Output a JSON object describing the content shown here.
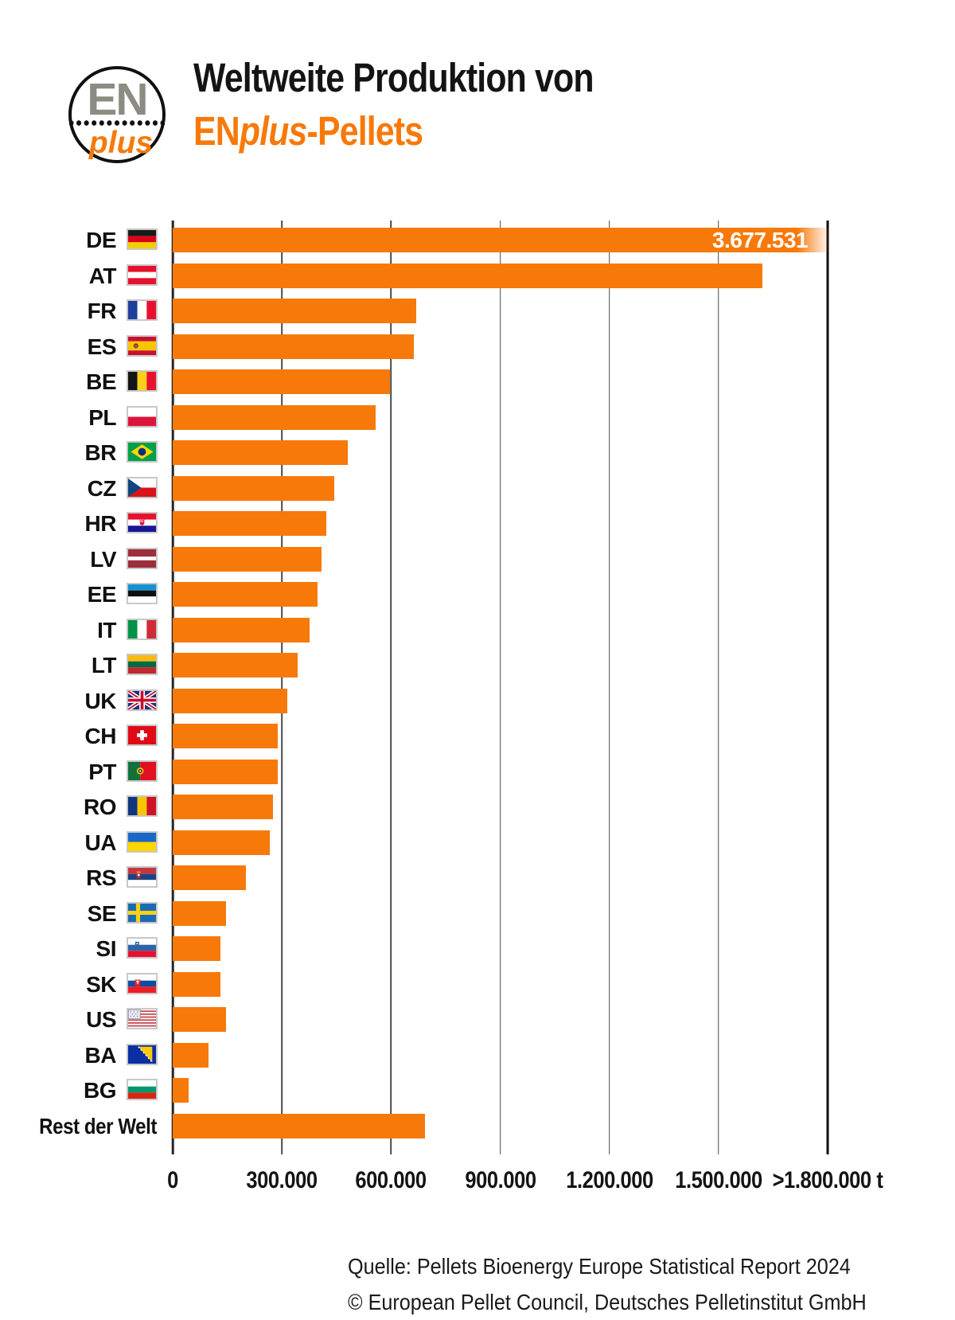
{
  "header": {
    "logo": {
      "text_top": "EN",
      "text_bottom": "plus"
    },
    "title": {
      "line1": "Weltweite Produktion von",
      "line2_en": "EN",
      "line2_plus": "plus",
      "line2_rest": "-Pellets"
    }
  },
  "chart_data": {
    "type": "bar",
    "orientation": "horizontal",
    "title": "Weltweite Produktion von ENplus-Pellets",
    "unit": "t",
    "axis_max": 1800000,
    "grid": true,
    "x_ticks": [
      {
        "label": "0",
        "value": 0
      },
      {
        "label": "300.000",
        "value": 300000
      },
      {
        "label": "600.000",
        "value": 600000
      },
      {
        "label": "900.000",
        "value": 900000
      },
      {
        "label": "1.200.000",
        "value": 1200000
      },
      {
        "label": "1.500.000",
        "value": 1500000
      },
      {
        "label": ">1.800.000 t",
        "value": 1800000
      }
    ],
    "categories": [
      "DE",
      "AT",
      "FR",
      "ES",
      "BE",
      "PL",
      "BR",
      "CZ",
      "HR",
      "LV",
      "EE",
      "IT",
      "LT",
      "UK",
      "CH",
      "PT",
      "RO",
      "UA",
      "RS",
      "SE",
      "SI",
      "SK",
      "US",
      "BA",
      "BG",
      "Rest der Welt"
    ],
    "values": [
      3677531,
      1620000,
      670000,
      662000,
      596000,
      558000,
      482000,
      445000,
      423000,
      410000,
      399000,
      377000,
      343000,
      315000,
      289000,
      288000,
      275000,
      267000,
      201000,
      146000,
      132000,
      132000,
      147000,
      99000,
      44000,
      693000
    ],
    "value_label": {
      "index": 0,
      "text": "3.677.531"
    },
    "overflow_index": 0,
    "colors": {
      "bar": "#F7790A",
      "grid": "#4A4A4A",
      "axis": "#1C1C1C",
      "value_label_text": "#FFFFFF"
    },
    "flags": {
      "DE": [
        [
          "rect",
          0,
          0,
          30,
          6.7,
          "#1A1A1A"
        ],
        [
          "rect",
          0,
          6.7,
          30,
          6.6,
          "#DD0016"
        ],
        [
          "rect",
          0,
          13.3,
          30,
          6.7,
          "#F2CE00"
        ]
      ],
      "AT": [
        [
          "rect",
          0,
          0,
          30,
          6.7,
          "#E8112D"
        ],
        [
          "rect",
          0,
          6.7,
          30,
          6.6,
          "#FFFFFF"
        ],
        [
          "rect",
          0,
          13.3,
          30,
          6.7,
          "#E8112D"
        ]
      ],
      "FR": [
        [
          "rect",
          0,
          0,
          10,
          20,
          "#1F3F9F"
        ],
        [
          "rect",
          10,
          0,
          10,
          20,
          "#FFFFFF"
        ],
        [
          "rect",
          20,
          0,
          10,
          20,
          "#E8112D"
        ]
      ],
      "ES": [
        [
          "rect",
          0,
          0,
          30,
          5,
          "#C8102E"
        ],
        [
          "rect",
          0,
          5,
          30,
          10,
          "#F7C600"
        ],
        [
          "rect",
          0,
          15,
          30,
          5,
          "#C8102E"
        ],
        [
          "circle",
          8.4,
          10,
          2.7,
          "#8A5B33"
        ],
        [
          "rect",
          6.9,
          7.4,
          3,
          1.4,
          "#C8102E"
        ]
      ],
      "BE": [
        [
          "rect",
          0,
          0,
          10,
          20,
          "#141414"
        ],
        [
          "rect",
          10,
          0,
          10,
          20,
          "#F7D117"
        ],
        [
          "rect",
          20,
          0,
          10,
          20,
          "#E8112D"
        ]
      ],
      "PL": [
        [
          "rect",
          0,
          0,
          30,
          10,
          "#FFFFFF"
        ],
        [
          "rect",
          0,
          10,
          30,
          10,
          "#DC143C"
        ]
      ],
      "BR": [
        [
          "rect",
          0,
          0,
          30,
          20,
          "#00A04A"
        ],
        [
          "path",
          "M15 2 L27 10 L15 18 L3 10 Z",
          "#FFD700"
        ],
        [
          "circle",
          15,
          10,
          4.2,
          "#00327F"
        ]
      ],
      "CZ": [
        [
          "rect",
          0,
          0,
          30,
          10,
          "#FFFFFF"
        ],
        [
          "rect",
          0,
          10,
          30,
          10,
          "#D7141A"
        ],
        [
          "path",
          "M0 0 L14 10 L0 20 Z",
          "#11457E"
        ]
      ],
      "HR": [
        [
          "rect",
          0,
          0,
          30,
          6.7,
          "#E8112D"
        ],
        [
          "rect",
          0,
          6.7,
          30,
          6.6,
          "#FFFFFF"
        ],
        [
          "rect",
          0,
          13.3,
          30,
          6.7,
          "#171796"
        ],
        [
          "path",
          "M12.6 5.8 h4.8 v4.6 a2.4 2.4 0 0 1 -4.8 0 Z",
          "#E8112D"
        ],
        [
          "rect",
          13.1,
          6.3,
          1.1,
          1.1,
          "#FFFFFF"
        ],
        [
          "rect",
          15.3,
          6.3,
          1.1,
          1.1,
          "#FFFFFF"
        ],
        [
          "rect",
          14.2,
          7.4,
          1.1,
          1.1,
          "#FFFFFF"
        ],
        [
          "rect",
          13.1,
          8.5,
          1.1,
          1.1,
          "#FFFFFF"
        ],
        [
          "rect",
          15.3,
          8.5,
          1.1,
          1.1,
          "#FFFFFF"
        ]
      ],
      "LV": [
        [
          "rect",
          0,
          0,
          30,
          8,
          "#9D2E3C"
        ],
        [
          "rect",
          0,
          8,
          30,
          4,
          "#FFFFFF"
        ],
        [
          "rect",
          0,
          12,
          30,
          8,
          "#9D2E3C"
        ]
      ],
      "EE": [
        [
          "rect",
          0,
          0,
          30,
          6.7,
          "#1791D0"
        ],
        [
          "rect",
          0,
          6.7,
          30,
          6.6,
          "#0F0F0F"
        ],
        [
          "rect",
          0,
          13.3,
          30,
          6.7,
          "#FFFFFF"
        ]
      ],
      "IT": [
        [
          "rect",
          0,
          0,
          10,
          20,
          "#009246"
        ],
        [
          "rect",
          10,
          0,
          10,
          20,
          "#FFFFFF"
        ],
        [
          "rect",
          20,
          0,
          10,
          20,
          "#CE2B37"
        ]
      ],
      "LT": [
        [
          "rect",
          0,
          0,
          30,
          6.7,
          "#FDB913"
        ],
        [
          "rect",
          0,
          6.7,
          30,
          6.6,
          "#006A44"
        ],
        [
          "rect",
          0,
          13.3,
          30,
          6.7,
          "#C1272D"
        ]
      ],
      "UK": [
        [
          "rect",
          0,
          0,
          30,
          20,
          "#1D2F7E"
        ],
        [
          "line",
          0,
          0,
          30,
          20,
          "#FFFFFF",
          4.4,
          ""
        ],
        [
          "line",
          30,
          0,
          0,
          20,
          "#FFFFFF",
          4.4,
          ""
        ],
        [
          "line",
          0,
          0,
          30,
          20,
          "#C8102E",
          1.6,
          ""
        ],
        [
          "line",
          30,
          0,
          0,
          20,
          "#C8102E",
          1.6,
          ""
        ],
        [
          "rect",
          12,
          0,
          6,
          20,
          "#FFFFFF"
        ],
        [
          "rect",
          0,
          7,
          30,
          6,
          "#FFFFFF"
        ],
        [
          "rect",
          13.4,
          0,
          3.2,
          20,
          "#C8102E"
        ],
        [
          "rect",
          0,
          8.4,
          30,
          3.2,
          "#C8102E"
        ]
      ],
      "CH": [
        [
          "rect",
          0,
          0,
          30,
          20,
          "#E00A17"
        ],
        [
          "rect",
          13,
          4.5,
          4,
          11,
          "#FFFFFF"
        ],
        [
          "rect",
          9.5,
          8,
          11,
          4,
          "#FFFFFF"
        ]
      ],
      "PT": [
        [
          "rect",
          0,
          0,
          13,
          20,
          "#10713A"
        ],
        [
          "rect",
          13,
          0,
          17,
          20,
          "#E01020"
        ],
        [
          "circle",
          13,
          10,
          3.7,
          "#F7C600"
        ],
        [
          "circle",
          13,
          10,
          2.2,
          "#262626"
        ],
        [
          "circle",
          13,
          10,
          1,
          "#FFFFFF"
        ]
      ],
      "RO": [
        [
          "rect",
          0,
          0,
          10,
          20,
          "#11357F"
        ],
        [
          "rect",
          10,
          0,
          10,
          20,
          "#F7C600"
        ],
        [
          "rect",
          20,
          0,
          10,
          20,
          "#CE1126"
        ]
      ],
      "UA": [
        [
          "rect",
          0,
          0,
          30,
          10,
          "#1C66C9"
        ],
        [
          "rect",
          0,
          10,
          30,
          10,
          "#FFD500"
        ]
      ],
      "RS": [
        [
          "rect",
          0,
          0,
          30,
          6.7,
          "#C6363C"
        ],
        [
          "rect",
          0,
          6.7,
          30,
          6.6,
          "#1B4386"
        ],
        [
          "rect",
          0,
          13.3,
          30,
          6.7,
          "#FFFFFF"
        ],
        [
          "rect",
          9.2,
          4,
          4.2,
          1.6,
          "#D9A441"
        ],
        [
          "path",
          "M9 5.6 h4.6 v4.4 a2.3 2.3 0 0 1 -4.6 0 Z",
          "#B32B30"
        ],
        [
          "circle",
          11.3,
          7.8,
          1.3,
          "#EDEDED"
        ]
      ],
      "SE": [
        [
          "rect",
          0,
          0,
          30,
          20,
          "#1A6BB5"
        ],
        [
          "rect",
          8.5,
          0,
          4.4,
          20,
          "#F7D117"
        ],
        [
          "rect",
          0,
          7.8,
          30,
          4.4,
          "#F7D117"
        ]
      ],
      "SI": [
        [
          "rect",
          0,
          0,
          30,
          6.7,
          "#FFFFFF"
        ],
        [
          "rect",
          0,
          6.7,
          30,
          6.6,
          "#2C66A8"
        ],
        [
          "rect",
          0,
          13.3,
          30,
          6.7,
          "#E8112D"
        ],
        [
          "path",
          "M7.6 3.4 h4.2 v3.8 a2.1 2.1 0 0 1 -4.2 0 Z",
          "#2C66A8"
        ],
        [
          "path",
          "M8.3 6 l1.4 -1.7 1.4 1.7 Z",
          "#FFFFFF"
        ]
      ],
      "SK": [
        [
          "rect",
          0,
          0,
          30,
          6.7,
          "#FFFFFF"
        ],
        [
          "rect",
          0,
          6.7,
          30,
          6.6,
          "#0B4EA2"
        ],
        [
          "rect",
          0,
          13.3,
          30,
          6.7,
          "#EE1C25"
        ],
        [
          "path",
          "M7.4 5.6 h5.8 v5 q0 1.7 -2.9 2.9 q-2.9 -1.2 -2.9 -2.9 Z",
          "#EE1C25"
        ],
        [
          "rect",
          9.75,
          6.3,
          1.1,
          4.2,
          "#FFFFFF"
        ],
        [
          "rect",
          8.5,
          7.2,
          3.6,
          1,
          "#FFFFFF"
        ]
      ],
      "US": [
        [
          "rect",
          0,
          0,
          30,
          20,
          "#FFFFFF"
        ],
        [
          "rect",
          0,
          1.1,
          30,
          1.6,
          "#C84B52"
        ],
        [
          "rect",
          0,
          4.3,
          30,
          1.6,
          "#C84B52"
        ],
        [
          "rect",
          0,
          7.5,
          30,
          1.6,
          "#C84B52"
        ],
        [
          "rect",
          0,
          10.7,
          30,
          1.6,
          "#C84B52"
        ],
        [
          "rect",
          0,
          13.9,
          30,
          1.6,
          "#C84B52"
        ],
        [
          "rect",
          0,
          17.1,
          30,
          1.6,
          "#C84B52"
        ],
        [
          "rect",
          0.4,
          0.4,
          12.6,
          9.6,
          "#E6E9F2",
          "#9AA1B8",
          0.8
        ],
        [
          "circle",
          2.8,
          2.6,
          0.65,
          "#8A92AC"
        ],
        [
          "circle",
          6.4,
          2.6,
          0.65,
          "#8A92AC"
        ],
        [
          "circle",
          10,
          2.6,
          0.65,
          "#8A92AC"
        ],
        [
          "circle",
          4.6,
          5,
          0.65,
          "#8A92AC"
        ],
        [
          "circle",
          8.2,
          5,
          0.65,
          "#8A92AC"
        ],
        [
          "circle",
          2.8,
          7.4,
          0.65,
          "#8A92AC"
        ],
        [
          "circle",
          6.4,
          7.4,
          0.65,
          "#8A92AC"
        ],
        [
          "circle",
          10,
          7.4,
          0.65,
          "#8A92AC"
        ]
      ],
      "BA": [
        [
          "rect",
          0,
          0,
          30,
          20,
          "#0A2FA3"
        ],
        [
          "path",
          "M11 1.5 L26 1.5 L26 18.5 Z",
          "#FFCB00"
        ],
        [
          "line",
          11,
          1.5,
          26,
          18.5,
          "#FFFFFF",
          1.4,
          "1.6 2.4"
        ]
      ],
      "BG": [
        [
          "rect",
          0,
          0,
          30,
          6.7,
          "#FFFFFF"
        ],
        [
          "rect",
          0,
          6.7,
          30,
          6.6,
          "#00966E"
        ],
        [
          "rect",
          0,
          13.3,
          30,
          6.7,
          "#D62612"
        ]
      ],
      "Rest der Welt": null
    }
  },
  "footer": {
    "line1": "Quelle: Pellets Bioenergy Europe Statistical Report 2024",
    "line2": "© European Pellet Council, Deutsches Pelletinstitut GmbH"
  }
}
